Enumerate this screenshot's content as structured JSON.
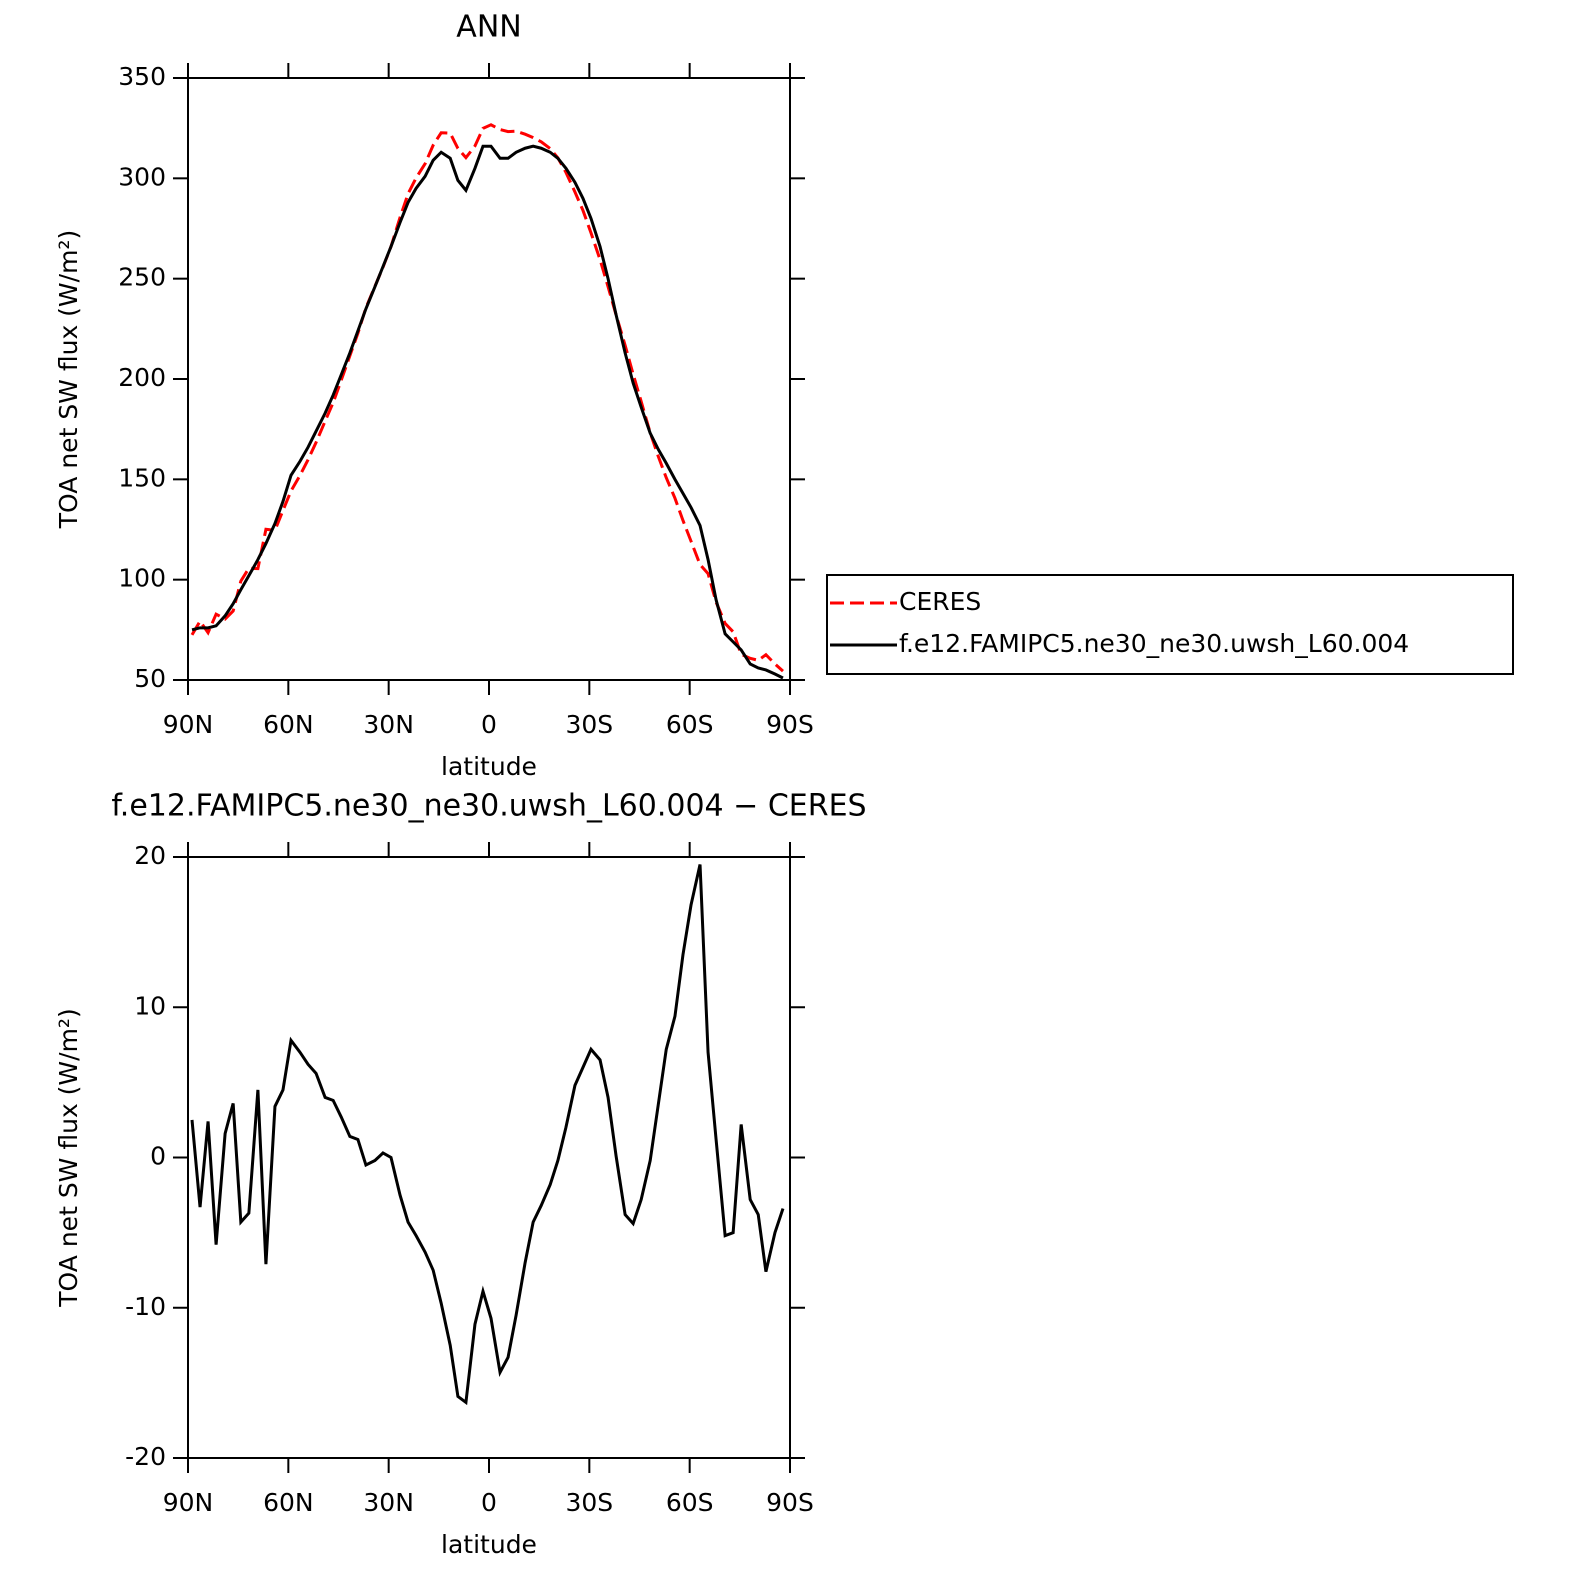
{
  "chart_data": [
    {
      "type": "line",
      "title": "ANN",
      "xlabel": "latitude",
      "ylabel": "TOA net SW flux (W/m²)",
      "x": [
        88.8,
        86.4,
        84.0,
        81.6,
        78.9,
        76.5,
        74.2,
        71.8,
        69.1,
        66.7,
        64.0,
        61.6,
        59.2,
        56.5,
        54.1,
        51.7,
        49.0,
        46.6,
        44.2,
        41.6,
        39.2,
        36.8,
        34.1,
        31.7,
        29.3,
        26.6,
        24.2,
        21.8,
        19.1,
        16.7,
        14.3,
        11.6,
        9.3,
        6.9,
        4.2,
        1.8,
        -0.6,
        -3.3,
        -5.7,
        -8.1,
        -10.8,
        -13.2,
        -15.6,
        -18.3,
        -20.6,
        -23.0,
        -25.7,
        -28.1,
        -30.5,
        -33.2,
        -35.6,
        -38.0,
        -40.7,
        -43.1,
        -45.5,
        -48.2,
        -50.6,
        -53.0,
        -55.6,
        -58.0,
        -60.4,
        -63.1,
        -65.5,
        -67.9,
        -70.6,
        -73.0,
        -75.4,
        -78.1,
        -80.5,
        -82.8,
        -85.5,
        -87.9
      ],
      "series": [
        {
          "name": "CERES",
          "color": "#ff0000",
          "dash": true,
          "values": [
            72.5,
            79.3,
            73.6,
            82.8,
            80.4,
            84.4,
            99.3,
            105.7,
            105.5,
            125.1,
            124.6,
            134.5,
            144.2,
            152,
            159.8,
            168.4,
            179,
            188.2,
            199.3,
            211.6,
            222.8,
            235.5,
            246.2,
            255.7,
            266,
            280.5,
            292.3,
            300.2,
            307.3,
            316.5,
            322.7,
            322.5,
            314.9,
            310.3,
            316.1,
            324.9,
            326.7,
            324.3,
            323.3,
            323.5,
            322,
            320.3,
            318.2,
            314.8,
            310.2,
            303,
            293.2,
            284,
            272.8,
            259.5,
            246,
            231.9,
            216.8,
            202.4,
            188.8,
            173.2,
            161.5,
            150.8,
            140.6,
            129.5,
            119.2,
            107.5,
            103,
            88.8,
            78.2,
            74,
            62.8,
            60.8,
            59.8,
            62.6,
            58,
            54.4
          ]
        },
        {
          "name": "f.e12.FAMIPC5.ne30_ne30.uwsh_L60.004",
          "color": "#000000",
          "dash": false,
          "values": [
            75,
            76,
            76,
            77,
            82,
            88,
            95,
            102,
            110,
            118,
            128,
            139,
            152,
            159,
            166,
            174,
            183,
            192,
            202,
            213,
            224,
            235,
            246,
            256,
            266,
            278,
            288,
            295,
            301,
            309,
            313,
            310,
            299,
            294,
            305,
            316,
            316,
            310,
            310,
            313,
            315,
            316,
            315,
            313,
            310,
            305,
            298,
            290,
            280,
            266,
            250,
            232,
            213,
            198,
            186,
            173,
            165,
            158,
            150,
            143,
            136,
            127,
            110,
            90,
            73,
            69,
            65,
            58,
            56,
            55,
            53,
            51
          ]
        }
      ],
      "xlim": [
        90,
        -90
      ],
      "xticks": [
        {
          "value": 90,
          "label": "90N"
        },
        {
          "value": 60,
          "label": "60N"
        },
        {
          "value": 30,
          "label": "30N"
        },
        0,
        {
          "value": -30,
          "label": "30S"
        },
        {
          "value": -60,
          "label": "60S"
        },
        {
          "value": -90,
          "label": "90S"
        }
      ],
      "ylim": [
        50,
        350
      ],
      "yticks": [
        50,
        100,
        150,
        200,
        250,
        300,
        350
      ],
      "legend": "right"
    },
    {
      "type": "line",
      "title": "f.e12.FAMIPC5.ne30_ne30.uwsh_L60.004 − CERES",
      "xlabel": "latitude",
      "ylabel": "TOA net SW flux (W/m²)",
      "x": [
        88.8,
        86.4,
        84.0,
        81.6,
        78.9,
        76.5,
        74.2,
        71.8,
        69.1,
        66.7,
        64.0,
        61.6,
        59.2,
        56.5,
        54.1,
        51.7,
        49.0,
        46.6,
        44.2,
        41.6,
        39.2,
        36.8,
        34.1,
        31.7,
        29.3,
        26.6,
        24.2,
        21.8,
        19.1,
        16.7,
        14.3,
        11.6,
        9.3,
        6.9,
        4.2,
        1.8,
        -0.6,
        -3.3,
        -5.7,
        -8.1,
        -10.8,
        -13.2,
        -15.6,
        -18.3,
        -20.6,
        -23.0,
        -25.7,
        -28.1,
        -30.5,
        -33.2,
        -35.6,
        -38.0,
        -40.7,
        -43.1,
        -45.5,
        -48.2,
        -50.6,
        -53.0,
        -55.6,
        -58.0,
        -60.4,
        -63.1,
        -65.5,
        -67.9,
        -70.6,
        -73.0,
        -75.4,
        -78.1,
        -80.5,
        -82.8,
        -85.5,
        -87.9
      ],
      "series": [
        {
          "color": "#000000",
          "dash": false,
          "values": [
            2.5,
            -3.3,
            2.4,
            -5.8,
            1.6,
            3.6,
            -4.3,
            -3.7,
            4.5,
            -7.1,
            3.4,
            4.5,
            7.8,
            7.0,
            6.2,
            5.6,
            4.0,
            3.8,
            2.7,
            1.4,
            1.2,
            -0.5,
            -0.2,
            0.3,
            0.0,
            -2.5,
            -4.3,
            -5.2,
            -6.3,
            -7.5,
            -9.7,
            -12.5,
            -15.9,
            -16.3,
            -11.1,
            -8.9,
            -10.7,
            -14.3,
            -13.3,
            -10.5,
            -7.0,
            -4.3,
            -3.2,
            -1.8,
            -0.2,
            2.0,
            4.8,
            6.0,
            7.2,
            6.5,
            4.0,
            0.1,
            -3.8,
            -4.4,
            -2.8,
            -0.2,
            3.5,
            7.2,
            9.4,
            13.5,
            16.8,
            19.5,
            7.0,
            1.2,
            -5.2,
            -5.0,
            2.2,
            -2.8,
            -3.8,
            -7.6,
            -5.0,
            -3.4
          ]
        }
      ],
      "xlim": [
        90,
        -90
      ],
      "xticks": [
        {
          "value": 90,
          "label": "90N"
        },
        {
          "value": 60,
          "label": "60N"
        },
        {
          "value": 30,
          "label": "30N"
        },
        0,
        {
          "value": -30,
          "label": "30S"
        },
        {
          "value": -60,
          "label": "60S"
        },
        {
          "value": -90,
          "label": "90S"
        }
      ],
      "ylim": [
        -20,
        20
      ],
      "yticks": [
        -20,
        -10,
        0,
        10,
        20
      ]
    }
  ]
}
